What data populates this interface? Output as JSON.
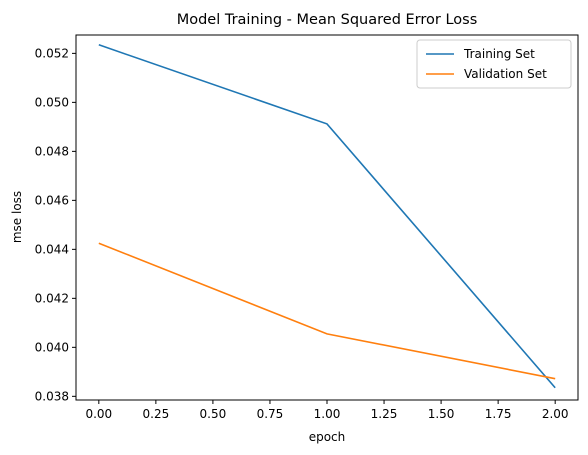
{
  "chart_data": {
    "type": "line",
    "title": "Model Training - Mean Squared Error Loss",
    "xlabel": "epoch",
    "ylabel": "mse loss",
    "x": [
      0,
      1,
      2
    ],
    "series": [
      {
        "name": "Training Set",
        "color": "#1f77b4",
        "values": [
          0.05235,
          0.04912,
          0.03835
        ]
      },
      {
        "name": "Validation Set",
        "color": "#ff7f0e",
        "values": [
          0.04425,
          0.04055,
          0.03872
        ]
      }
    ],
    "xlim": [
      -0.1,
      2.1
    ],
    "ylim": [
      0.03785,
      0.05275
    ],
    "xticks": [
      0,
      0.25,
      0.5,
      0.75,
      1,
      1.25,
      1.5,
      1.75,
      2
    ],
    "xtick_labels": [
      "0.00",
      "0.25",
      "0.50",
      "0.75",
      "1.00",
      "1.25",
      "1.50",
      "1.75",
      "2.00"
    ],
    "yticks": [
      0.038,
      0.04,
      0.042,
      0.044,
      0.046,
      0.048,
      0.05,
      0.052
    ],
    "ytick_labels": [
      "0.038",
      "0.040",
      "0.042",
      "0.044",
      "0.046",
      "0.048",
      "0.050",
      "0.052"
    ],
    "grid": false,
    "legend_position": "top-right"
  }
}
